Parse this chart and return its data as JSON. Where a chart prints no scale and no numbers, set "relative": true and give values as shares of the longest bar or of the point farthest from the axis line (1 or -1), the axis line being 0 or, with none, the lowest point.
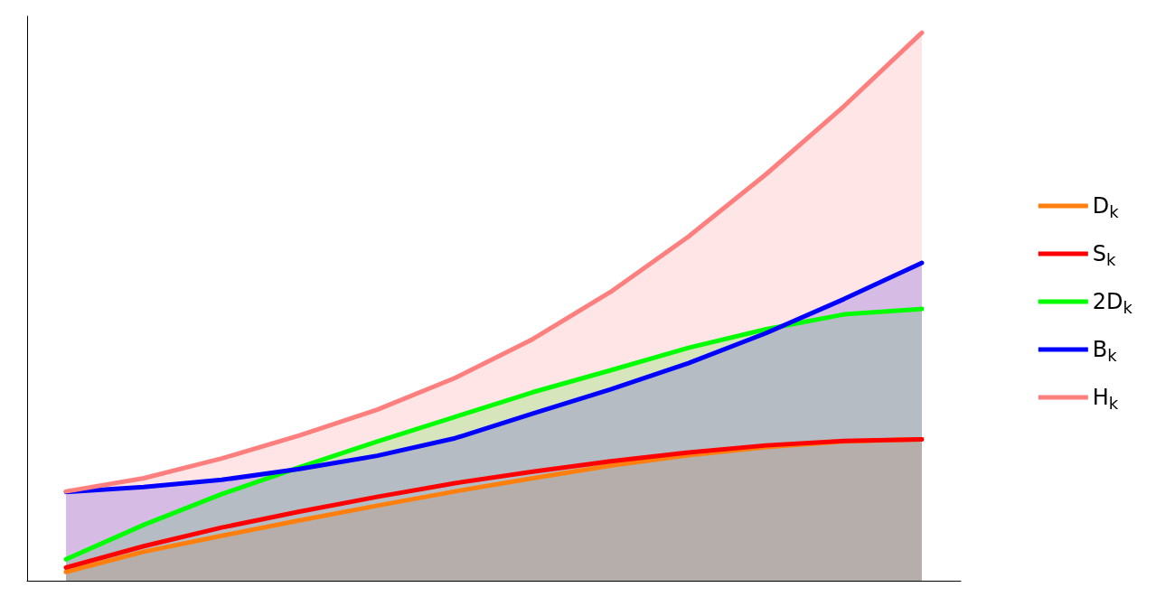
{
  "chart_data": {
    "type": "area",
    "relative": true,
    "legend": "right",
    "grid": false,
    "categories": [
      null,
      null,
      null,
      null,
      null,
      null,
      null,
      null,
      null,
      null,
      null,
      null
    ],
    "series": [
      {
        "name": "D$_{k}$",
        "color": "#ff7f0e",
        "values": [
          0.016,
          0.053,
          0.082,
          0.11,
          0.137,
          0.163,
          0.187,
          0.21,
          0.229,
          0.244,
          0.254,
          0.258
        ]
      },
      {
        "name": "S$_{k}$",
        "type": "line",
        "color": "#ff0000",
        "values": [
          0.024,
          0.063,
          0.097,
          0.126,
          0.153,
          0.178,
          0.199,
          0.218,
          0.234,
          0.247,
          0.255,
          0.258
        ]
      },
      {
        "name": "2D$_{k}$",
        "color": "#00ff00",
        "values": [
          0.039,
          0.102,
          0.158,
          0.207,
          0.254,
          0.299,
          0.344,
          0.384,
          0.425,
          0.459,
          0.486,
          0.496
        ]
      },
      {
        "name": "B$_{k}$",
        "color": "#0000ff",
        "values": [
          0.162,
          0.171,
          0.184,
          0.204,
          0.228,
          0.26,
          0.305,
          0.349,
          0.397,
          0.452,
          0.514,
          0.58
        ]
      },
      {
        "name": "H$_{k}$",
        "color": "#ff7f7f",
        "values": [
          0.163,
          0.187,
          0.223,
          0.265,
          0.312,
          0.37,
          0.441,
          0.527,
          0.628,
          0.742,
          0.866,
          1
        ]
      }
    ]
  }
}
